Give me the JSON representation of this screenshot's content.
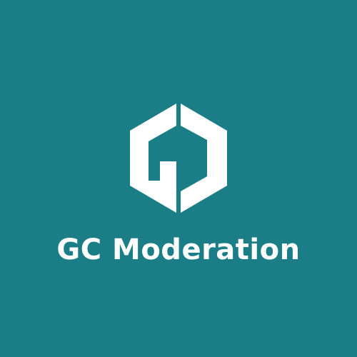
{
  "brand": {
    "name": "GC Moderation",
    "logo_icon": "gc-hexagon-logo-icon"
  },
  "colors": {
    "background": "#1b7e87",
    "foreground": "#ffffff"
  }
}
